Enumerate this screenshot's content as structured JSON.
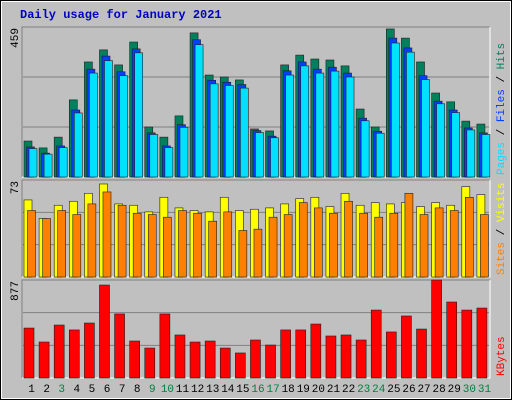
{
  "chart_data": [
    {
      "type": "bar",
      "title": "Daily usage for January 2021",
      "ylim": [
        0,
        459
      ],
      "yticks": [
        459
      ],
      "grid_divisions": 3,
      "legend_separator": " / ",
      "series": [
        {
          "name": "Hits",
          "color": "#00805c",
          "values": [
            110,
            89,
            122,
            236,
            352,
            389,
            343,
            413,
            153,
            122,
            187,
            441,
            312,
            306,
            297,
            147,
            141,
            343,
            373,
            361,
            358,
            340,
            208,
            153,
            453,
            425,
            352,
            257,
            230,
            171,
            162
          ]
        },
        {
          "name": "Files",
          "color": "#0040ff",
          "values": [
            92,
            73,
            95,
            205,
            330,
            370,
            322,
            392,
            135,
            95,
            160,
            420,
            296,
            290,
            283,
            142,
            125,
            325,
            352,
            330,
            336,
            318,
            180,
            140,
            425,
            395,
            310,
            232,
            205,
            150,
            135
          ]
        },
        {
          "name": "Pages",
          "color": "#00e0ff",
          "values": [
            87,
            70,
            90,
            196,
            318,
            356,
            310,
            380,
            130,
            90,
            152,
            405,
            285,
            280,
            272,
            136,
            120,
            312,
            340,
            318,
            324,
            306,
            172,
            134,
            410,
            382,
            298,
            224,
            197,
            144,
            130
          ]
        }
      ]
    },
    {
      "type": "bar",
      "ylim": [
        0,
        73
      ],
      "yticks": [
        73
      ],
      "grid_divisions": 3,
      "legend_separator": " / ",
      "series": [
        {
          "name": "Visits",
          "color": "#ffff00",
          "values": [
            58,
            44,
            54,
            57,
            63,
            70,
            55,
            54,
            49,
            60,
            52,
            50,
            49,
            60,
            50,
            51,
            52,
            55,
            59,
            60,
            53,
            63,
            54,
            56,
            55,
            56,
            53,
            56,
            54,
            68,
            62
          ]
        },
        {
          "name": "Sites",
          "color": "#ff8000",
          "values": [
            50,
            44,
            50,
            47,
            55,
            64,
            54,
            48,
            47,
            45,
            50,
            48,
            42,
            49,
            35,
            36,
            45,
            47,
            56,
            52,
            48,
            57,
            48,
            45,
            48,
            63,
            47,
            52,
            50,
            60,
            47
          ]
        }
      ]
    },
    {
      "type": "bar",
      "ylim": [
        0,
        877
      ],
      "yticks": [
        877
      ],
      "grid_divisions": 3,
      "series": [
        {
          "name": "KBytes",
          "color": "#ff0000",
          "values": [
            447,
            322,
            474,
            430,
            492,
            832,
            573,
            331,
            268,
            573,
            385,
            322,
            331,
            268,
            224,
            340,
            295,
            430,
            430,
            483,
            376,
            385,
            340,
            608,
            412,
            555,
            438,
            877,
            680,
            608,
            626
          ]
        }
      ],
      "categories": [
        "1",
        "2",
        "3",
        "4",
        "5",
        "6",
        "7",
        "8",
        "9",
        "10",
        "11",
        "12",
        "13",
        "14",
        "15",
        "16",
        "17",
        "18",
        "19",
        "20",
        "21",
        "22",
        "23",
        "24",
        "25",
        "26",
        "27",
        "28",
        "29",
        "30",
        "31"
      ],
      "category_colors": [
        "#000000",
        "#000000",
        "#008040",
        "#000000",
        "#000000",
        "#000000",
        "#000000",
        "#000000",
        "#008040",
        "#008040",
        "#000000",
        "#000000",
        "#000000",
        "#000000",
        "#000000",
        "#008040",
        "#008040",
        "#000000",
        "#000000",
        "#000000",
        "#000000",
        "#000000",
        "#008040",
        "#008040",
        "#000000",
        "#000000",
        "#000000",
        "#000000",
        "#000000",
        "#008040",
        "#008040"
      ]
    }
  ]
}
